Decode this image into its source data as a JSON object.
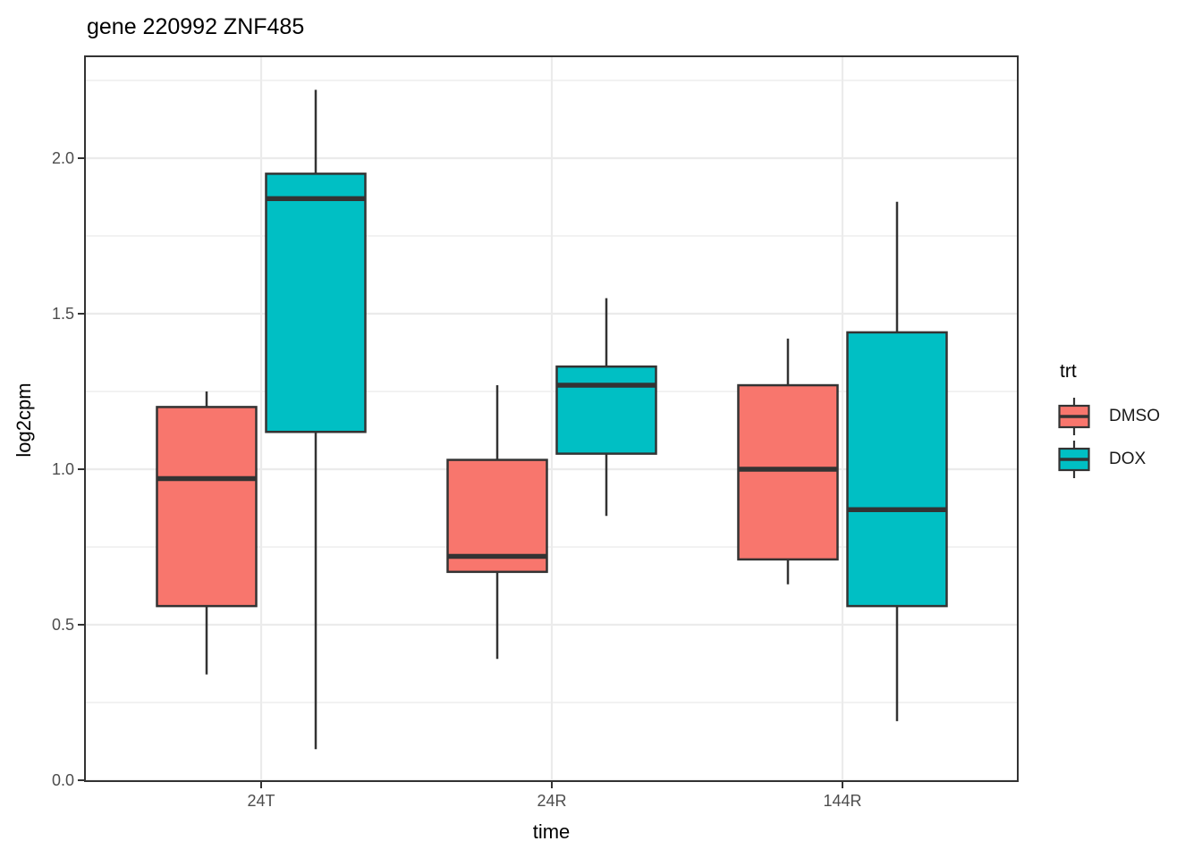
{
  "chart_data": {
    "type": "boxplot",
    "title": "gene 220992 ZNF485",
    "xlabel": "time",
    "ylabel": "log2cpm",
    "categories": [
      "24T",
      "24R",
      "144R"
    ],
    "y_axis": {
      "ticks": [
        {
          "value": 0.0,
          "label": "0.0"
        },
        {
          "value": 0.5,
          "label": "0.5"
        },
        {
          "value": 1.0,
          "label": "1.0"
        },
        {
          "value": 1.5,
          "label": "1.5"
        },
        {
          "value": 2.0,
          "label": "2.0"
        }
      ],
      "minor_ticks": [
        0.25,
        0.75,
        1.25,
        1.75,
        2.25
      ],
      "ylim": [
        -0.005,
        2.33
      ]
    },
    "grid": true,
    "panel_border": true,
    "legend": {
      "title": "trt",
      "position": "right",
      "entries": [
        {
          "label": "DMSO",
          "color": "#F8766D"
        },
        {
          "label": "DOX",
          "color": "#00BFC4"
        }
      ]
    },
    "series": [
      {
        "name": "DMSO",
        "color": "#F8766D",
        "boxes": [
          {
            "category": "24T",
            "whisker_low": 0.34,
            "q1": 0.56,
            "median": 0.97,
            "q3": 1.2,
            "whisker_high": 1.25
          },
          {
            "category": "24R",
            "whisker_low": 0.39,
            "q1": 0.67,
            "median": 0.72,
            "q3": 1.03,
            "whisker_high": 1.27
          },
          {
            "category": "144R",
            "whisker_low": 0.63,
            "q1": 0.71,
            "median": 1.0,
            "q3": 1.27,
            "whisker_high": 1.42
          }
        ]
      },
      {
        "name": "DOX",
        "color": "#00BFC4",
        "boxes": [
          {
            "category": "24T",
            "whisker_low": 0.1,
            "q1": 1.12,
            "median": 1.87,
            "q3": 1.95,
            "whisker_high": 2.22
          },
          {
            "category": "24R",
            "whisker_low": 0.85,
            "q1": 1.05,
            "median": 1.27,
            "q3": 1.33,
            "whisker_high": 1.55
          },
          {
            "category": "144R",
            "whisker_low": 0.19,
            "q1": 0.56,
            "median": 0.87,
            "q3": 1.44,
            "whisker_high": 1.86
          }
        ]
      }
    ],
    "style_colors": {
      "box_outline": "#333333",
      "gridline": "#EBEBEB",
      "tick_label": "#4D4D4D",
      "panel_background": "#FFFFFF"
    }
  }
}
